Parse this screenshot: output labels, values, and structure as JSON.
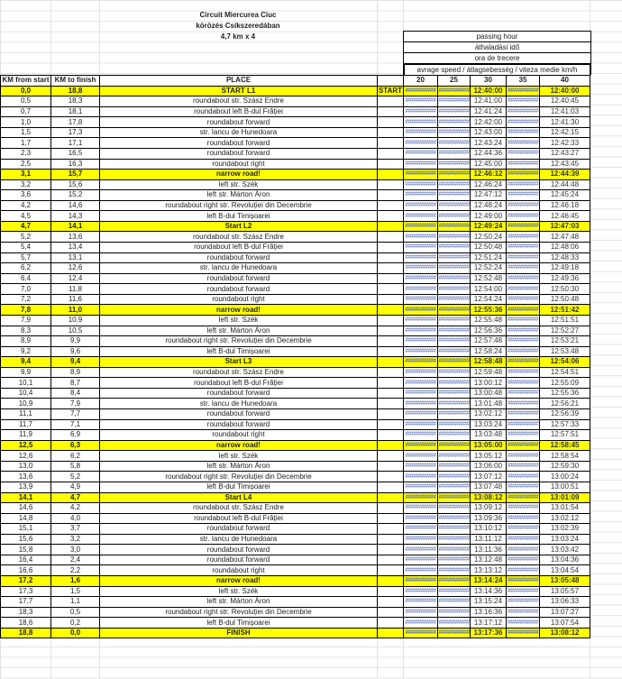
{
  "header": {
    "title_lines": [
      "Circuit Miercurea Ciuc",
      "körözés Csíkszeredában",
      "4,7 km x 4"
    ],
    "passing_labels": [
      "passing hour",
      "áthaladási idő",
      "ora de trecere"
    ],
    "speed_label": "avrage speed / átlagsebesség / viteza medie km/h"
  },
  "columns": {
    "km_from_start": "KM from start",
    "km_to_finish": "KM to finish",
    "place": "PLACE",
    "speeds": [
      "20",
      "25",
      "30",
      "35",
      "40"
    ]
  },
  "overflow_display": "##########",
  "colors": {
    "highlight": "#ffff00",
    "overflow_text": "#5b6fb5"
  },
  "rows": [
    {
      "from": "0,0",
      "to": "18,8",
      "place": "START L1",
      "start": "START",
      "t30": "12:40:00",
      "t40": "12:40:00",
      "hl": true
    },
    {
      "from": "0,5",
      "to": "18,3",
      "place": "roundabout str. Szász Endre",
      "t30": "12:41:00",
      "t40": "12:40:45"
    },
    {
      "from": "0,7",
      "to": "18,1",
      "place": "roundabout left B-dul Frăției",
      "t30": "12:41:24",
      "t40": "12:41:03"
    },
    {
      "from": "1,0",
      "to": "17,8",
      "place": "roundabout forward",
      "t30": "12:42:00",
      "t40": "12:41:30"
    },
    {
      "from": "1,5",
      "to": "17,3",
      "place": "str. Iancu de Hunedoara",
      "t30": "12:43:00",
      "t40": "12:42:15"
    },
    {
      "from": "1,7",
      "to": "17,1",
      "place": "roundabout forward",
      "t30": "12:43:24",
      "t40": "12:42:33"
    },
    {
      "from": "2,3",
      "to": "16,5",
      "place": "roundabout forward",
      "t30": "12:44:36",
      "t40": "12:43:27"
    },
    {
      "from": "2,5",
      "to": "16,3",
      "place": "roundabout right",
      "t30": "12:45:00",
      "t40": "12:43:45"
    },
    {
      "from": "3,1",
      "to": "15,7",
      "place": "narrow road!",
      "t30": "12:46:12",
      "t40": "12:44:39",
      "hl": true
    },
    {
      "from": "3,2",
      "to": "15,6",
      "place": "left str. Szék",
      "t30": "12:46:24",
      "t40": "12:44:48"
    },
    {
      "from": "3,6",
      "to": "15,2",
      "place": "left str. Márton Áron",
      "t30": "12:47:12",
      "t40": "12:45:24"
    },
    {
      "from": "4,2",
      "to": "14,6",
      "place": "roundabout right str. Revoluției din Decembrie",
      "t30": "12:48:24",
      "t40": "12:46:18"
    },
    {
      "from": "4,5",
      "to": "14,3",
      "place": "left B-dul Timișoarei",
      "t30": "12:49:00",
      "t40": "12:46:45"
    },
    {
      "from": "4,7",
      "to": "14,1",
      "place": "Start L2",
      "t30": "12:49:24",
      "t40": "12:47:03",
      "hl": true
    },
    {
      "from": "5,2",
      "to": "13,6",
      "place": "roundabout str. Szász Endre",
      "t30": "12:50:24",
      "t40": "12:47:48"
    },
    {
      "from": "5,4",
      "to": "13,4",
      "place": "roundabout left B-dul Frăției",
      "t30": "12:50:48",
      "t40": "12:48:06"
    },
    {
      "from": "5,7",
      "to": "13,1",
      "place": "roundabout forward",
      "t30": "12:51:24",
      "t40": "12:48:33"
    },
    {
      "from": "6,2",
      "to": "12,6",
      "place": "str. Iancu de Hunedoara",
      "t30": "12:52:24",
      "t40": "12:49:18"
    },
    {
      "from": "6,4",
      "to": "12,4",
      "place": "roundabout forward",
      "t30": "12:52:48",
      "t40": "12:49:36"
    },
    {
      "from": "7,0",
      "to": "11,8",
      "place": "roundabout forward",
      "t30": "12:54:00",
      "t40": "12:50:30"
    },
    {
      "from": "7,2",
      "to": "11,6",
      "place": "roundabout right",
      "t30": "12:54:24",
      "t40": "12:50:48"
    },
    {
      "from": "7,8",
      "to": "11,0",
      "place": "narrow road!",
      "t30": "12:55:36",
      "t40": "12:51:42",
      "hl": true
    },
    {
      "from": "7,9",
      "to": "10,9",
      "place": "left str. Szék",
      "t30": "12:55:48",
      "t40": "12:51:51"
    },
    {
      "from": "8,3",
      "to": "10,5",
      "place": "left str. Márton Áron",
      "t30": "12:56:36",
      "t40": "12:52:27"
    },
    {
      "from": "8,9",
      "to": "9,9",
      "place": "roundabout right str. Revoluției din Decembrie",
      "t30": "12:57:48",
      "t40": "12:53:21"
    },
    {
      "from": "9,2",
      "to": "9,6",
      "place": "left B-dul Timișoarei",
      "t30": "12:58:24",
      "t40": "12:53:48"
    },
    {
      "from": "9,4",
      "to": "9,4",
      "place": "Start L3",
      "t30": "12:58:48",
      "t40": "12:54:06",
      "hl": true
    },
    {
      "from": "9,9",
      "to": "8,9",
      "place": "roundabout str. Szász Endre",
      "t30": "12:59:48",
      "t40": "12:54:51"
    },
    {
      "from": "10,1",
      "to": "8,7",
      "place": "roundabout left B-dul Frăției",
      "t30": "13:00:12",
      "t40": "12:55:09"
    },
    {
      "from": "10,4",
      "to": "8,4",
      "place": "roundabout forward",
      "t30": "13:00:48",
      "t40": "12:55:36"
    },
    {
      "from": "10,9",
      "to": "7,9",
      "place": "str. Iancu de Hunedoara",
      "t30": "13:01:48",
      "t40": "12:56:21"
    },
    {
      "from": "11,1",
      "to": "7,7",
      "place": "roundabout forward",
      "t30": "13:02:12",
      "t40": "12:56:39"
    },
    {
      "from": "11,7",
      "to": "7,1",
      "place": "roundabout forward",
      "t30": "13:03:24",
      "t40": "12:57:33"
    },
    {
      "from": "11,9",
      "to": "6,9",
      "place": "roundabout right",
      "t30": "13:03:48",
      "t40": "12:57:51"
    },
    {
      "from": "12,5",
      "to": "6,3",
      "place": "narrow road!",
      "t30": "13:05:00",
      "t40": "12:58:45",
      "hl": true
    },
    {
      "from": "12,6",
      "to": "6,2",
      "place": "left str. Szék",
      "t30": "13:05:12",
      "t40": "12:58:54"
    },
    {
      "from": "13,0",
      "to": "5,8",
      "place": "left str. Márton Áron",
      "t30": "13:06:00",
      "t40": "12:59:30"
    },
    {
      "from": "13,6",
      "to": "5,2",
      "place": "roundabout right str. Revoluției din Decembrie",
      "t30": "13:07:12",
      "t40": "13:00:24"
    },
    {
      "from": "13,9",
      "to": "4,9",
      "place": "left B-dul Timișoarei",
      "t30": "13:07:48",
      "t40": "13:00:51"
    },
    {
      "from": "14,1",
      "to": "4,7",
      "place": "Start L4",
      "t30": "13:08:12",
      "t40": "13:01:09",
      "hl": true
    },
    {
      "from": "14,6",
      "to": "4,2",
      "place": "roundabout str. Szász Endre",
      "t30": "13:09:12",
      "t40": "13:01:54"
    },
    {
      "from": "14,8",
      "to": "4,0",
      "place": "roundabout left B-dul Frăției",
      "t30": "13:09:36",
      "t40": "13:02:12"
    },
    {
      "from": "15,1",
      "to": "3,7",
      "place": "roundabout forward",
      "t30": "13:10:12",
      "t40": "13:02:39"
    },
    {
      "from": "15,6",
      "to": "3,2",
      "place": "str. Iancu de Hunedoara",
      "t30": "13:11:12",
      "t40": "13:03:24"
    },
    {
      "from": "15,8",
      "to": "3,0",
      "place": "roundabout forward",
      "t30": "13:11:36",
      "t40": "13:03:42"
    },
    {
      "from": "16,4",
      "to": "2,4",
      "place": "roundabout forward",
      "t30": "13:12:48",
      "t40": "13:04:36"
    },
    {
      "from": "16,6",
      "to": "2,2",
      "place": "roundabout right",
      "t30": "13:13:12",
      "t40": "13:04:54"
    },
    {
      "from": "17,2",
      "to": "1,6",
      "place": "narrow road!",
      "t30": "13:14:24",
      "t40": "13:05:48",
      "hl": true
    },
    {
      "from": "17,3",
      "to": "1,5",
      "place": "left str. Szék",
      "t30": "13:14:36",
      "t40": "13:05:57"
    },
    {
      "from": "17,7",
      "to": "1,1",
      "place": "left str. Márton Áron",
      "t30": "13:15:24",
      "t40": "13:06:33"
    },
    {
      "from": "18,3",
      "to": "0,5",
      "place": "roundabout right str. Revoluției din Decembrie",
      "t30": "13:16:36",
      "t40": "13:07:27"
    },
    {
      "from": "18,6",
      "to": "0,2",
      "place": "left B-dul Timișoarei",
      "t30": "13:17:12",
      "t40": "13:07:54"
    },
    {
      "from": "18,8",
      "to": "0,0",
      "place": "FINISH",
      "t30": "13:17:36",
      "t40": "13:08:12",
      "hl": true
    }
  ]
}
